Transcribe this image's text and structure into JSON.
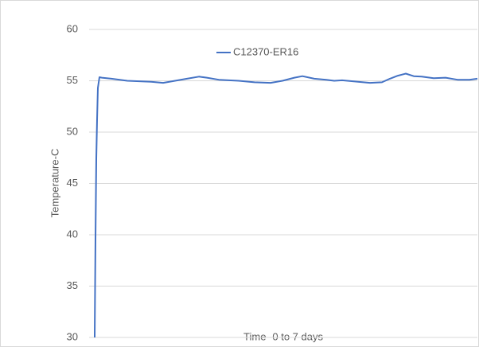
{
  "chart_data": {
    "type": "line",
    "y_label": "Temperature-C",
    "x_label": "Time -0 to 7 days",
    "x": [
      0,
      0.015,
      0.029,
      0.044,
      0.058,
      0.087,
      0.131,
      0.306,
      0.597,
      1.033,
      1.252,
      1.47,
      1.688,
      1.907,
      2.052,
      2.27,
      2.634,
      2.925,
      3.216,
      3.435,
      3.653,
      3.798,
      4.017,
      4.235,
      4.381,
      4.526,
      4.817,
      5.035,
      5.254,
      5.399,
      5.545,
      5.69,
      5.836,
      5.981,
      6.199,
      6.418,
      6.636,
      6.854,
      7.0
    ],
    "series": [
      {
        "name": "C12370-ER16",
        "color": "#4472c4",
        "values": [
          30,
          39.6,
          47.4,
          51.2,
          54.3,
          55.35,
          55.3,
          55.2,
          55.0,
          54.9,
          54.8,
          55.0,
          55.2,
          55.4,
          55.3,
          55.1,
          55.0,
          54.85,
          54.8,
          55.0,
          55.3,
          55.45,
          55.2,
          55.1,
          55.0,
          55.05,
          54.9,
          54.8,
          54.85,
          55.2,
          55.5,
          55.7,
          55.45,
          55.4,
          55.25,
          55.3,
          55.1,
          55.1,
          55.2
        ]
      }
    ],
    "xlim": [
      0,
      7
    ],
    "ylim": [
      30,
      60
    ],
    "yticks": [
      30,
      35,
      40,
      45,
      50,
      55,
      60
    ],
    "grid": true,
    "legend": "top"
  }
}
